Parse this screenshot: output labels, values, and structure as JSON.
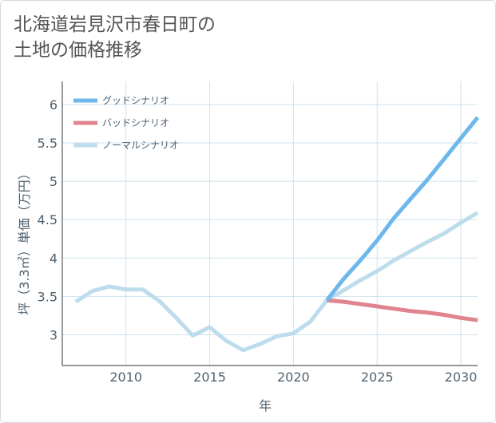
{
  "title": "北海道岩見沢市春日町の\n土地の価格推移",
  "chart_data": {
    "type": "line",
    "xlabel": "年",
    "ylabel": "坪（3.3㎡）単価（万円）",
    "xlim": [
      2006.2,
      2031
    ],
    "ylim": [
      2.6,
      6.3
    ],
    "xticks": [
      2010,
      2015,
      2020,
      2025,
      2030
    ],
    "yticks": [
      3,
      3.5,
      4,
      4.5,
      5,
      5.5,
      6
    ],
    "grid": true,
    "legend_position": "top-left",
    "series": [
      {
        "name": "グッドシナリオ",
        "color": "#6cb8ec",
        "x": [
          2022,
          2023,
          2024,
          2025,
          2026,
          2027,
          2028,
          2029,
          2030,
          2031
        ],
        "values": [
          3.45,
          3.73,
          3.97,
          4.23,
          4.52,
          4.77,
          5.02,
          5.29,
          5.56,
          5.83
        ]
      },
      {
        "name": "バッドシナリオ",
        "color": "#e0848f",
        "x": [
          2022,
          2023,
          2024,
          2025,
          2026,
          2027,
          2028,
          2029,
          2030,
          2031
        ],
        "values": [
          3.45,
          3.43,
          3.4,
          3.37,
          3.34,
          3.31,
          3.29,
          3.26,
          3.22,
          3.19
        ]
      },
      {
        "name": "ノーマルシナリオ",
        "color": "#bddcec",
        "x": [
          2007,
          2008,
          2009,
          2010,
          2011,
          2012,
          2013,
          2014,
          2015,
          2016,
          2017,
          2018,
          2019,
          2020,
          2021,
          2022,
          2023,
          2024,
          2025,
          2026,
          2027,
          2028,
          2029,
          2030,
          2031
        ],
        "values": [
          3.43,
          3.57,
          3.63,
          3.59,
          3.59,
          3.44,
          3.22,
          2.99,
          3.1,
          2.92,
          2.8,
          2.88,
          2.98,
          3.02,
          3.17,
          3.45,
          3.58,
          3.71,
          3.83,
          3.97,
          4.09,
          4.21,
          4.32,
          4.46,
          4.59
        ]
      }
    ]
  }
}
